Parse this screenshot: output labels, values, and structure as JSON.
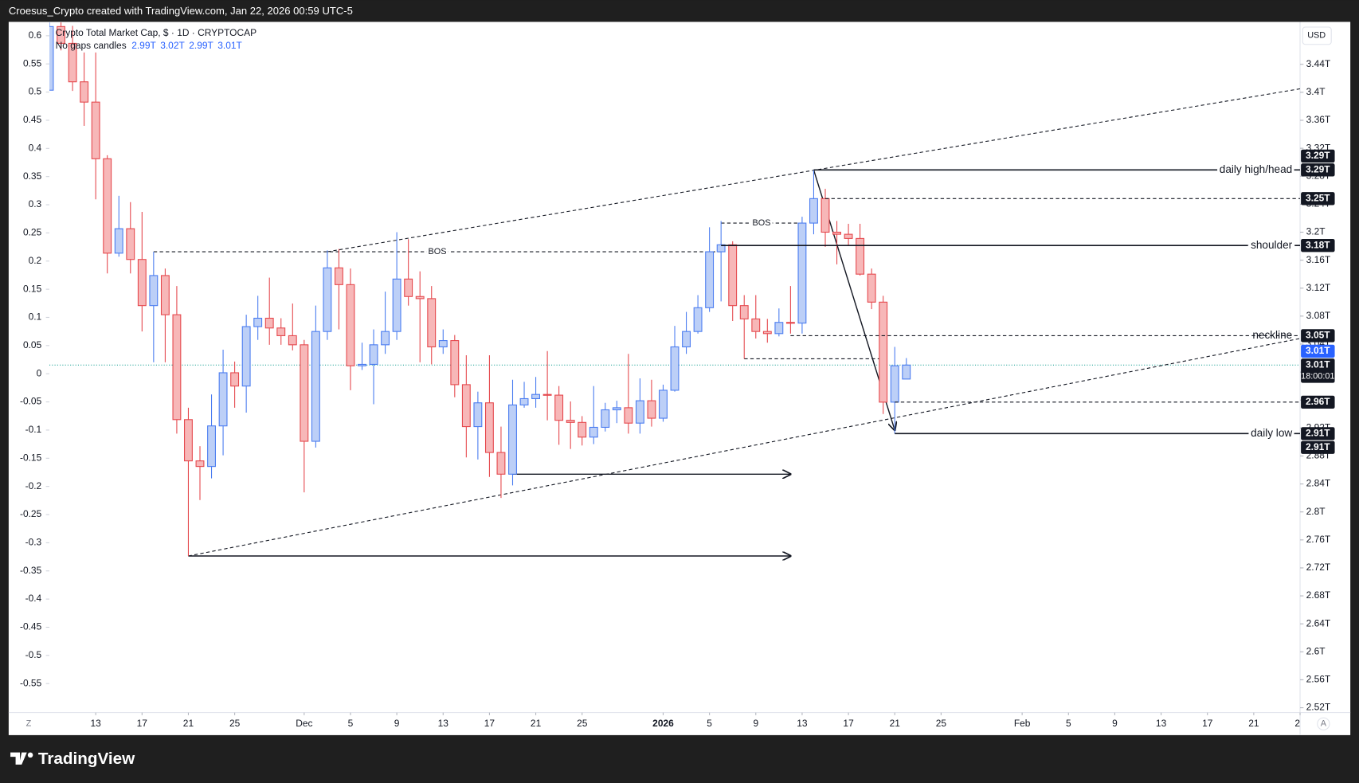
{
  "header": {
    "attribution": "Croesus_Crypto created with TradingView.com, Jan 22, 2026 00:59 UTC-5",
    "logo": "TradingView"
  },
  "ui": {
    "currency": "USD",
    "scale_buttons": [
      "Z",
      "A"
    ]
  },
  "chart_data": {
    "type": "candlestick",
    "title": "Crypto Total Market Cap, $ · 1D · CRYPTOCAP",
    "subtitle": "No gaps candles",
    "ohlc_labels": [
      "2.99T",
      "3.02T",
      "2.99T",
      "3.01T"
    ],
    "up_color": "#4a7cf0",
    "up_fill": "#bccff7",
    "down_color": "#e5484d",
    "down_fill": "#f7b7b8",
    "x": [
      "2025-11-09",
      "2025-11-10",
      "2025-11-11",
      "2025-11-12",
      "2025-11-13",
      "2025-11-14",
      "2025-11-15",
      "2025-11-16",
      "2025-11-17",
      "2025-11-18",
      "2025-11-19",
      "2025-11-20",
      "2025-11-21",
      "2025-11-22",
      "2025-11-23",
      "2025-11-24",
      "2025-11-25",
      "2025-11-26",
      "2025-11-27",
      "2025-11-28",
      "2025-11-29",
      "2025-11-30",
      "2025-12-01",
      "2025-12-02",
      "2025-12-03",
      "2025-12-04",
      "2025-12-05",
      "2025-12-06",
      "2025-12-07",
      "2025-12-08",
      "2025-12-09",
      "2025-12-10",
      "2025-12-11",
      "2025-12-12",
      "2025-12-13",
      "2025-12-14",
      "2025-12-15",
      "2025-12-16",
      "2025-12-17",
      "2025-12-18",
      "2025-12-19",
      "2025-12-20",
      "2025-12-21",
      "2025-12-22",
      "2025-12-23",
      "2025-12-24",
      "2025-12-25",
      "2025-12-26",
      "2025-12-27",
      "2025-12-28",
      "2025-12-29",
      "2025-12-30",
      "2025-12-31",
      "2026-01-01",
      "2026-01-02",
      "2026-01-03",
      "2026-01-04",
      "2026-01-05",
      "2026-01-06",
      "2026-01-07",
      "2026-01-08",
      "2026-01-09",
      "2026-01-10",
      "2026-01-11",
      "2026-01-12",
      "2026-01-13",
      "2026-01-14",
      "2026-01-15",
      "2026-01-16",
      "2026-01-17",
      "2026-01-18",
      "2026-01-19",
      "2026-01-20",
      "2026-01-21",
      "2026-01-22"
    ],
    "open": [
      3.403,
      3.494,
      3.47,
      3.415,
      3.386,
      3.305,
      3.17,
      3.205,
      3.161,
      3.095,
      3.138,
      3.082,
      2.932,
      2.873,
      2.865,
      2.923,
      2.999,
      2.98,
      3.065,
      3.077,
      3.063,
      3.052,
      3.039,
      2.901,
      3.058,
      3.149,
      3.125,
      3.009,
      3.011,
      3.039,
      3.058,
      3.133,
      3.108,
      3.105,
      3.036,
      3.045,
      2.982,
      2.922,
      2.956,
      2.885,
      2.854,
      2.953,
      2.962,
      2.968,
      2.967,
      2.931,
      2.928,
      2.907,
      2.921,
      2.946,
      2.949,
      2.927,
      2.959,
      2.934,
      2.974,
      3.036,
      3.058,
      3.092,
      3.172,
      3.182,
      3.095,
      3.076,
      3.058,
      3.055,
      3.071,
      3.07,
      3.213,
      3.248,
      3.2,
      3.197,
      3.191,
      3.14,
      3.1,
      2.957,
      2.99
    ],
    "high": [
      3.5,
      3.5,
      3.495,
      3.457,
      3.457,
      3.31,
      3.252,
      3.243,
      3.229,
      3.172,
      3.148,
      3.123,
      2.949,
      2.894,
      2.968,
      3.032,
      3.015,
      3.082,
      3.109,
      3.135,
      3.077,
      3.098,
      3.046,
      3.095,
      3.174,
      3.176,
      3.148,
      3.042,
      3.061,
      3.115,
      3.2,
      3.19,
      3.144,
      3.123,
      3.061,
      3.053,
      3.024,
      2.972,
      3.024,
      2.922,
      2.989,
      2.986,
      2.993,
      3.03,
      2.98,
      2.958,
      2.937,
      2.98,
      2.956,
      2.959,
      3.026,
      2.991,
      2.989,
      2.982,
      3.066,
      3.086,
      3.11,
      3.207,
      3.216,
      3.187,
      3.11,
      3.11,
      3.076,
      3.091,
      3.123,
      3.222,
      3.289,
      3.262,
      3.216,
      3.212,
      3.212,
      3.148,
      3.109,
      3.036,
      3.02
    ],
    "low": [
      3.403,
      3.46,
      3.402,
      3.352,
      3.247,
      3.141,
      3.165,
      3.141,
      3.058,
      3.014,
      3.014,
      2.912,
      2.737,
      2.817,
      2.848,
      2.881,
      2.949,
      2.942,
      3.046,
      3.039,
      3.039,
      3.031,
      2.828,
      2.892,
      3.046,
      3.061,
      2.974,
      3.003,
      2.954,
      3.026,
      3.046,
      3.095,
      3.014,
      3.011,
      3.026,
      2.964,
      2.878,
      2.875,
      2.85,
      2.82,
      2.838,
      2.949,
      2.949,
      2.931,
      2.896,
      2.89,
      2.895,
      2.897,
      2.915,
      2.927,
      2.912,
      2.912,
      2.922,
      2.929,
      2.972,
      3.026,
      3.055,
      3.086,
      3.101,
      3.073,
      3.019,
      3.048,
      3.042,
      3.051,
      3.055,
      3.055,
      3.197,
      3.179,
      3.154,
      3.181,
      3.138,
      3.09,
      2.94,
      2.912,
      2.99
    ],
    "close": [
      3.494,
      3.47,
      3.415,
      3.386,
      3.305,
      3.17,
      3.205,
      3.161,
      3.095,
      3.138,
      3.082,
      2.932,
      2.873,
      2.865,
      2.923,
      2.999,
      2.98,
      3.065,
      3.077,
      3.063,
      3.052,
      3.039,
      2.901,
      3.058,
      3.149,
      3.125,
      3.009,
      3.011,
      3.039,
      3.058,
      3.133,
      3.108,
      3.105,
      3.036,
      3.045,
      2.982,
      2.922,
      2.956,
      2.885,
      2.854,
      2.953,
      2.962,
      2.968,
      2.967,
      2.931,
      2.928,
      2.907,
      2.921,
      2.946,
      2.949,
      2.927,
      2.959,
      2.934,
      2.974,
      3.036,
      3.058,
      3.092,
      3.172,
      3.182,
      3.095,
      3.076,
      3.058,
      3.055,
      3.071,
      3.07,
      3.213,
      3.248,
      3.2,
      3.197,
      3.191,
      3.14,
      3.1,
      2.957,
      3.009,
      3.01
    ],
    "xlim": [
      "2025-11-09",
      "2026-02-25"
    ],
    "xticks": [
      {
        "value": "2025-11-13",
        "label": "13"
      },
      {
        "value": "2025-11-17",
        "label": "17"
      },
      {
        "value": "2025-11-21",
        "label": "21"
      },
      {
        "value": "2025-11-25",
        "label": "25"
      },
      {
        "value": "2025-12-01",
        "label": "Dec"
      },
      {
        "value": "2025-12-05",
        "label": "5"
      },
      {
        "value": "2025-12-09",
        "label": "9"
      },
      {
        "value": "2025-12-13",
        "label": "13"
      },
      {
        "value": "2025-12-17",
        "label": "17"
      },
      {
        "value": "2025-12-21",
        "label": "21"
      },
      {
        "value": "2025-12-25",
        "label": "25"
      },
      {
        "value": "2026-01-01",
        "label": "2026"
      },
      {
        "value": "2026-01-05",
        "label": "5"
      },
      {
        "value": "2026-01-09",
        "label": "9"
      },
      {
        "value": "2026-01-13",
        "label": "13"
      },
      {
        "value": "2026-01-17",
        "label": "17"
      },
      {
        "value": "2026-01-21",
        "label": "21"
      },
      {
        "value": "2026-01-25",
        "label": "25"
      },
      {
        "value": "2026-02-01",
        "label": "Feb"
      },
      {
        "value": "2026-02-05",
        "label": "5"
      },
      {
        "value": "2026-02-09",
        "label": "9"
      },
      {
        "value": "2026-02-13",
        "label": "13"
      },
      {
        "value": "2026-02-17",
        "label": "17"
      },
      {
        "value": "2026-02-21",
        "label": "21"
      },
      {
        "value": "2026-02-25",
        "label": "2"
      }
    ],
    "ylim": [
      2.5131,
      3.5007
    ],
    "yticks": [
      {
        "value": 3.44,
        "label": "3.44T"
      },
      {
        "value": 3.4,
        "label": "3.4T"
      },
      {
        "value": 3.36,
        "label": "3.36T"
      },
      {
        "value": 3.32,
        "label": "3.32T"
      },
      {
        "value": 3.28,
        "label": "3.28T"
      },
      {
        "value": 3.24,
        "label": "3.24T"
      },
      {
        "value": 3.2,
        "label": "3.2T"
      },
      {
        "value": 3.16,
        "label": "3.16T"
      },
      {
        "value": 3.12,
        "label": "3.12T"
      },
      {
        "value": 3.08,
        "label": "3.08T"
      },
      {
        "value": 3.04,
        "label": "3.04T"
      },
      {
        "value": 3.0,
        "label": "3T"
      },
      {
        "value": 2.96,
        "label": "2.96T"
      },
      {
        "value": 2.92,
        "label": "2.92T"
      },
      {
        "value": 2.88,
        "label": "2.88T"
      },
      {
        "value": 2.84,
        "label": "2.84T"
      },
      {
        "value": 2.8,
        "label": "2.8T"
      },
      {
        "value": 2.76,
        "label": "2.76T"
      },
      {
        "value": 2.72,
        "label": "2.72T"
      },
      {
        "value": 2.68,
        "label": "2.68T"
      },
      {
        "value": 2.64,
        "label": "2.64T"
      },
      {
        "value": 2.6,
        "label": "2.6T"
      },
      {
        "value": 2.56,
        "label": "2.56T"
      },
      {
        "value": 2.52,
        "label": "2.52T"
      }
    ],
    "y2lim": [
      -0.6015,
      0.6246
    ],
    "y2ticks": [
      0.6,
      0.55,
      0.5,
      0.45,
      0.4,
      0.35,
      0.3,
      0.25,
      0.2,
      0.15,
      0.1,
      0.05,
      0,
      -0.05,
      -0.1,
      -0.15,
      -0.2,
      -0.25,
      -0.3,
      -0.35,
      -0.4,
      -0.45,
      -0.5,
      -0.55
    ],
    "levels": [
      {
        "label": "daily high/head",
        "value": 3.289,
        "value_label": "3.29T",
        "from": "2026-01-14",
        "style": "solid"
      },
      {
        "value": 3.248,
        "value_label": "3.25T",
        "from": "2026-01-15",
        "style": "dashed"
      },
      {
        "label": "shoulder",
        "value": 3.181,
        "value_label": "3.18T",
        "from": "2026-01-06",
        "style": "solid"
      },
      {
        "label": "neckline",
        "value": 3.052,
        "value_label": "3.05T",
        "from": "2026-01-12",
        "style": "dashed"
      },
      {
        "value": 2.957,
        "value_label": "2.96T",
        "from": "2026-01-21",
        "style": "dashed"
      },
      {
        "label": "daily low",
        "value": 2.912,
        "value_label": "2.91T",
        "from": "2026-01-21",
        "style": "solid"
      }
    ],
    "drawings": [
      {
        "from": [
          "2025-11-18",
          3.172
        ],
        "to": [
          "2026-01-06",
          3.172
        ],
        "style": "dashed",
        "label": "BOS"
      },
      {
        "from": [
          "2026-01-06",
          3.213
        ],
        "to": [
          "2026-01-13",
          3.213
        ],
        "style": "dashed",
        "label": "BOS"
      },
      {
        "from": [
          "2026-01-08",
          3.019
        ],
        "to": [
          "2026-01-20",
          3.019
        ],
        "style": "dashed"
      },
      {
        "from": [
          "2025-12-03",
          3.172
        ],
        "to": [
          "2026-02-25",
          3.405
        ],
        "style": "dashed"
      },
      {
        "from": [
          "2025-11-21",
          2.737
        ],
        "to": [
          "2026-02-25",
          3.048
        ],
        "style": "dashed"
      },
      {
        "from": [
          "2025-11-21",
          2.737
        ],
        "to": [
          "2026-01-12",
          2.737
        ],
        "style": "solid",
        "arrow": true
      },
      {
        "from": [
          "2025-12-19",
          2.854
        ],
        "to": [
          "2026-01-12",
          2.854
        ],
        "style": "solid",
        "arrow": true
      },
      {
        "from": [
          "2026-01-14",
          3.289
        ],
        "to": [
          "2026-01-21",
          2.917
        ],
        "style": "solid",
        "arrow": true
      }
    ],
    "badges": [
      {
        "value": 3.289,
        "label": "3.29T"
      },
      {
        "value": 2.912,
        "label": "2.91T"
      },
      {
        "value": 3.01,
        "label": "3.01T",
        "countdown": "18:00:01"
      },
      {
        "value": 3.01,
        "label": "3.01T",
        "color": "#2962ff"
      }
    ],
    "price_line_color": "#26a69a"
  }
}
